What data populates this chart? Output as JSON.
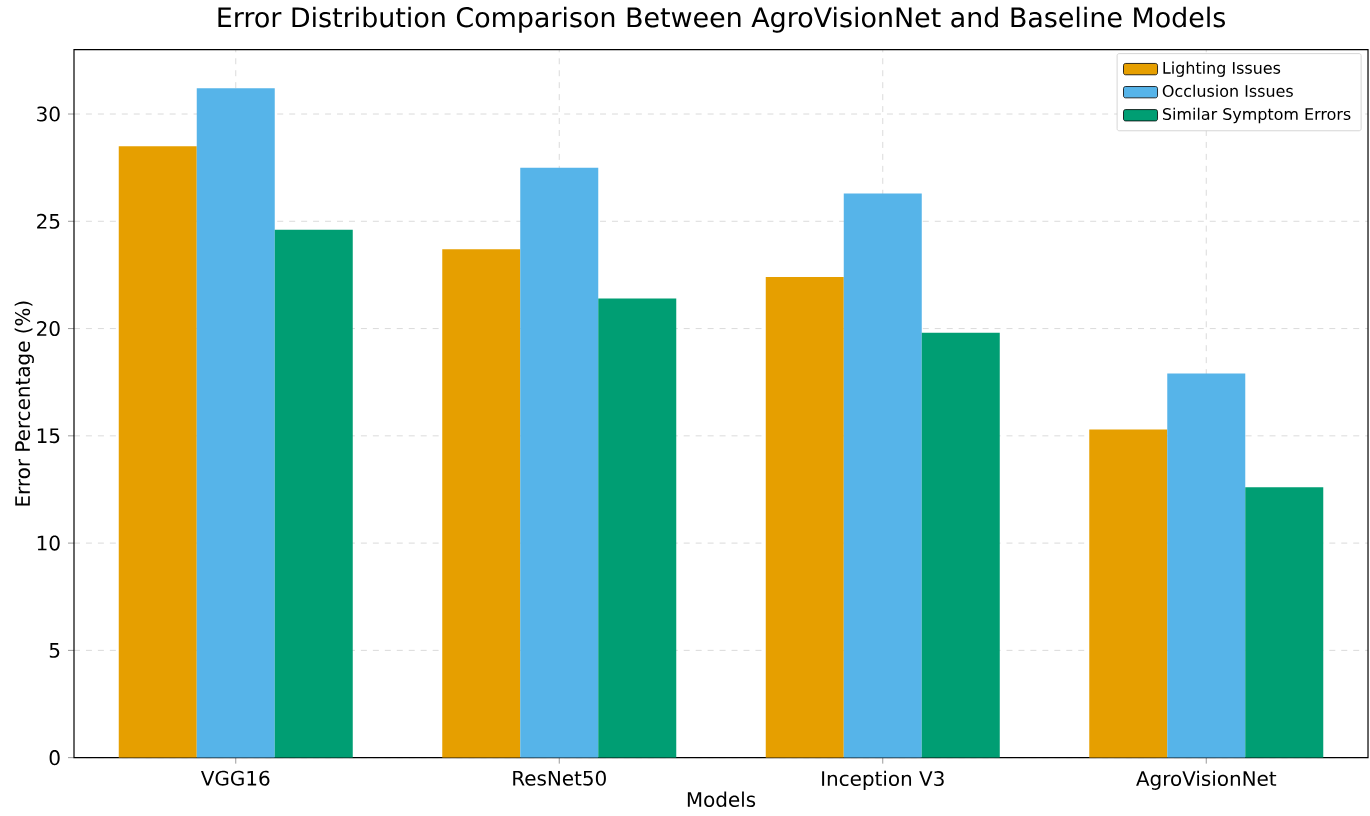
{
  "chart_data": {
    "type": "bar",
    "title": "Error Distribution Comparison Between AgroVisionNet and Baseline Models",
    "xlabel": "Models",
    "ylabel": "Error Percentage (%)",
    "categories": [
      "VGG16",
      "ResNet50",
      "Inception V3",
      "AgroVisionNet"
    ],
    "series": [
      {
        "name": "Lighting Issues",
        "color": "#e69f00",
        "values": [
          28.5,
          23.7,
          22.4,
          15.3
        ]
      },
      {
        "name": "Occlusion Issues",
        "color": "#56b4e9",
        "values": [
          31.2,
          27.5,
          26.3,
          17.9
        ]
      },
      {
        "name": "Similar Symptom Errors",
        "color": "#009e73",
        "values": [
          24.6,
          21.4,
          19.8,
          12.6
        ]
      }
    ],
    "ylim": [
      0,
      33
    ],
    "yticks": [
      0,
      5,
      10,
      15,
      20,
      25,
      30
    ],
    "grid": true,
    "legend": "top right"
  }
}
